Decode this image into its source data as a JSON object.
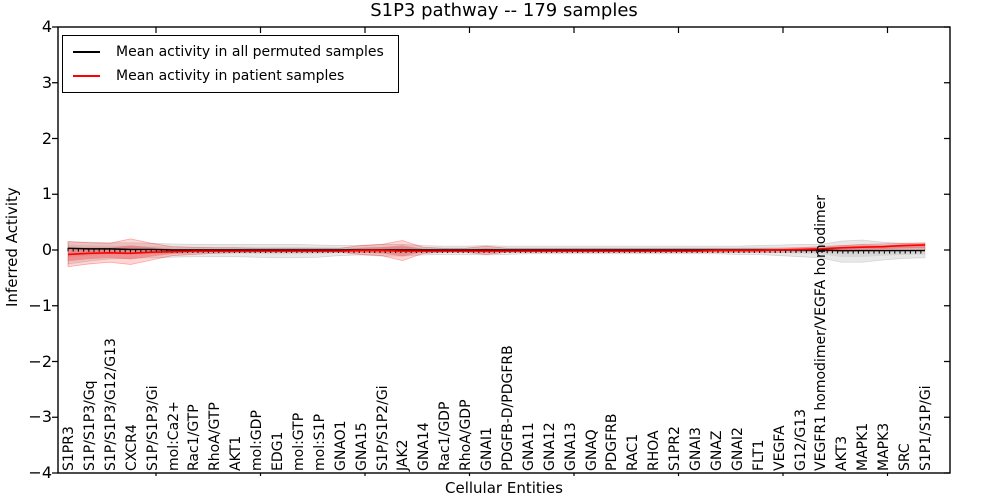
{
  "title": "S1P3 pathway -- 179 samples",
  "legend": [
    {
      "label": "Mean activity in all permuted samples",
      "color": "#000000"
    },
    {
      "label": "Mean activity in patient samples",
      "color": "#ff0000"
    }
  ],
  "axes": {
    "ylabel": "Inferred Activity",
    "xlabel": "Cellular Entities",
    "ytick_labels": [
      "4",
      "3",
      "2",
      "1",
      "0",
      "−1",
      "−2",
      "−3",
      "−4"
    ]
  },
  "chart_data": {
    "type": "line",
    "title": "S1P3 pathway -- 179 samples",
    "xlabel": "Cellular Entities",
    "ylabel": "Inferred Activity",
    "ylim": [
      -4,
      4
    ],
    "yticks": [
      4,
      3,
      2,
      1,
      0,
      -1,
      -2,
      -3,
      -4
    ],
    "grid": false,
    "legend_position": "upper left",
    "categories": [
      "S1PR3",
      "S1P/S1P3/Gq",
      "S1P/S1P3/G12/G13",
      "CXCR4",
      "S1P/S1P3/Gi",
      "mol:Ca2+",
      "Rac1/GTP",
      "RhoA/GTP",
      "AKT1",
      "mol:GDP",
      "EDG1",
      "mol:GTP",
      "mol:S1P",
      "GNAO1",
      "GNA15",
      "S1P/S1P2/Gi",
      "JAK2",
      "GNA14",
      "Rac1/GDP",
      "RhoA/GDP",
      "GNAI1",
      "PDGFB-D/PDGFRB",
      "GNA11",
      "GNA12",
      "GNA13",
      "GNAQ",
      "PDGFRB",
      "RAC1",
      "RHOA",
      "S1PR2",
      "GNAI3",
      "GNAZ",
      "GNAI2",
      "FLT1",
      "VEGFA",
      "G12/G13",
      "VEGFR1 homodimer/VEGFA homodimer",
      "AKT3",
      "MAPK1",
      "MAPK3",
      "SRC",
      "S1P1/S1P/Gi"
    ],
    "series": [
      {
        "name": "Mean activity in all permuted samples",
        "color": "#000000",
        "values": [
          0.03,
          0.02,
          0.02,
          0.01,
          0.01,
          0.0,
          0.0,
          0.0,
          0.0,
          0.0,
          0.0,
          0.0,
          0.0,
          0.0,
          0.0,
          0.0,
          0.0,
          0.0,
          0.0,
          0.0,
          0.0,
          0.0,
          0.0,
          0.0,
          0.0,
          0.0,
          0.0,
          0.0,
          0.0,
          0.0,
          0.0,
          0.0,
          0.0,
          0.0,
          0.0,
          0.0,
          0.0,
          -0.01,
          -0.01,
          -0.01,
          -0.01,
          -0.01
        ]
      },
      {
        "name": "Mean activity in patient samples",
        "color": "#ff0000",
        "values": [
          -0.08,
          -0.06,
          -0.05,
          -0.06,
          -0.04,
          -0.03,
          -0.02,
          -0.02,
          -0.02,
          -0.02,
          -0.02,
          -0.02,
          -0.02,
          -0.02,
          -0.01,
          -0.01,
          -0.02,
          -0.02,
          -0.02,
          -0.02,
          -0.02,
          -0.02,
          -0.02,
          -0.02,
          -0.02,
          -0.02,
          -0.02,
          -0.02,
          -0.02,
          -0.02,
          -0.02,
          -0.01,
          -0.01,
          -0.01,
          0.0,
          0.01,
          0.02,
          0.04,
          0.05,
          0.06,
          0.08,
          0.09
        ]
      }
    ],
    "bands": [
      {
        "name": "permuted samples range",
        "series": 0,
        "color": "#000000",
        "upper": [
          0.15,
          0.14,
          0.13,
          0.13,
          0.12,
          0.11,
          0.1,
          0.1,
          0.1,
          0.1,
          0.1,
          0.1,
          0.09,
          0.08,
          0.08,
          0.1,
          0.1,
          0.08,
          0.07,
          0.07,
          0.08,
          0.07,
          0.07,
          0.07,
          0.07,
          0.07,
          0.07,
          0.07,
          0.07,
          0.07,
          0.07,
          0.07,
          0.07,
          0.08,
          0.09,
          0.1,
          0.1,
          0.16,
          0.18,
          0.14,
          0.12,
          0.12
        ],
        "lower": [
          -0.25,
          -0.2,
          -0.16,
          -0.15,
          -0.14,
          -0.13,
          -0.12,
          -0.12,
          -0.12,
          -0.13,
          -0.14,
          -0.14,
          -0.13,
          -0.1,
          -0.09,
          -0.11,
          -0.11,
          -0.09,
          -0.08,
          -0.08,
          -0.09,
          -0.08,
          -0.07,
          -0.07,
          -0.07,
          -0.07,
          -0.07,
          -0.07,
          -0.07,
          -0.07,
          -0.07,
          -0.07,
          -0.08,
          -0.08,
          -0.1,
          -0.12,
          -0.14,
          -0.22,
          -0.22,
          -0.18,
          -0.15,
          -0.14
        ]
      },
      {
        "name": "patient samples range",
        "series": 1,
        "color": "#ff0000",
        "upper": [
          0.15,
          0.13,
          0.12,
          0.2,
          0.12,
          0.06,
          0.05,
          0.04,
          0.04,
          0.03,
          0.03,
          0.03,
          0.03,
          0.03,
          0.08,
          0.1,
          0.17,
          0.05,
          0.03,
          0.03,
          0.07,
          0.03,
          0.03,
          0.03,
          0.03,
          0.03,
          0.03,
          0.03,
          0.03,
          0.03,
          0.03,
          0.03,
          0.03,
          0.03,
          0.03,
          0.04,
          0.06,
          0.08,
          0.1,
          0.11,
          0.12,
          0.13
        ],
        "lower": [
          -0.3,
          -0.25,
          -0.22,
          -0.26,
          -0.18,
          -0.1,
          -0.08,
          -0.06,
          -0.05,
          -0.04,
          -0.04,
          -0.04,
          -0.04,
          -0.04,
          -0.08,
          -0.1,
          -0.19,
          -0.06,
          -0.04,
          -0.04,
          -0.08,
          -0.04,
          -0.04,
          -0.04,
          -0.04,
          -0.04,
          -0.04,
          -0.04,
          -0.04,
          -0.04,
          -0.04,
          -0.04,
          -0.04,
          -0.04,
          -0.04,
          -0.03,
          -0.03,
          -0.03,
          -0.02,
          -0.02,
          -0.01,
          0.0
        ]
      }
    ]
  }
}
